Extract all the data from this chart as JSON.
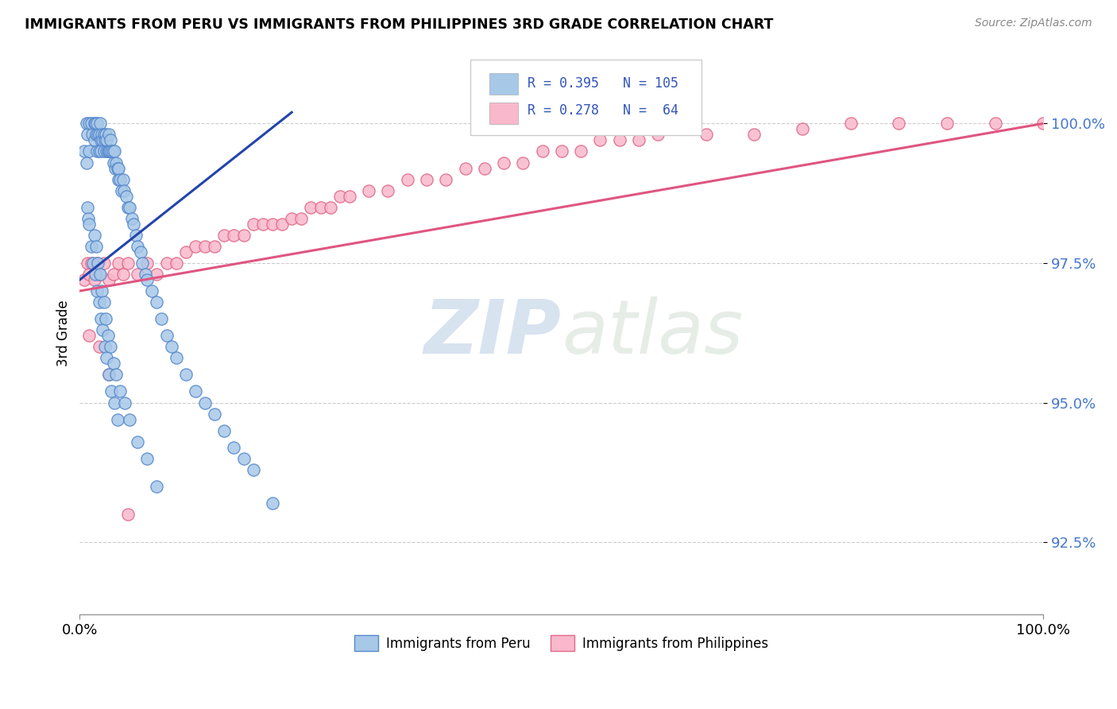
{
  "title": "IMMIGRANTS FROM PERU VS IMMIGRANTS FROM PHILIPPINES 3RD GRADE CORRELATION CHART",
  "source": "Source: ZipAtlas.com",
  "ylabel": "3rd Grade",
  "xlim": [
    0.0,
    1.0
  ],
  "ylim": [
    91.2,
    101.3
  ],
  "y_ticks": [
    92.5,
    95.0,
    97.5,
    100.0
  ],
  "y_tick_labels": [
    "92.5%",
    "95.0%",
    "97.5%",
    "100.0%"
  ],
  "x_ticks": [
    0.0,
    1.0
  ],
  "x_tick_labels": [
    "0.0%",
    "100.0%"
  ],
  "color_peru": "#a8c8e8",
  "color_philippines": "#f9b8cc",
  "color_edge_peru": "#5588cc",
  "color_edge_philippines": "#e06888",
  "color_line_peru": "#2244aa",
  "color_line_philippines": "#e05580",
  "watermark_zip": "ZIP",
  "watermark_atlas": "atlas",
  "background_color": "#ffffff",
  "peru_scatter_x": [
    0.005,
    0.007,
    0.008,
    0.01,
    0.01,
    0.012,
    0.013,
    0.015,
    0.015,
    0.016,
    0.017,
    0.018,
    0.018,
    0.019,
    0.02,
    0.02,
    0.021,
    0.022,
    0.022,
    0.023,
    0.024,
    0.025,
    0.025,
    0.026,
    0.027,
    0.028,
    0.028,
    0.029,
    0.03,
    0.03,
    0.031,
    0.032,
    0.033,
    0.034,
    0.035,
    0.036,
    0.037,
    0.038,
    0.039,
    0.04,
    0.04,
    0.042,
    0.043,
    0.045,
    0.046,
    0.048,
    0.05,
    0.052,
    0.054,
    0.056,
    0.058,
    0.06,
    0.063,
    0.065,
    0.068,
    0.07,
    0.075,
    0.08,
    0.085,
    0.09,
    0.095,
    0.1,
    0.11,
    0.12,
    0.13,
    0.14,
    0.15,
    0.16,
    0.17,
    0.18,
    0.008,
    0.009,
    0.01,
    0.012,
    0.014,
    0.016,
    0.018,
    0.02,
    0.022,
    0.024,
    0.026,
    0.028,
    0.03,
    0.033,
    0.036,
    0.039,
    0.015,
    0.017,
    0.019,
    0.021,
    0.023,
    0.025,
    0.027,
    0.029,
    0.032,
    0.035,
    0.038,
    0.042,
    0.047,
    0.052,
    0.06,
    0.07,
    0.08,
    0.007,
    0.2
  ],
  "peru_scatter_y": [
    99.5,
    100.0,
    99.8,
    100.0,
    99.5,
    100.0,
    99.8,
    100.0,
    99.7,
    100.0,
    99.8,
    100.0,
    99.5,
    99.8,
    99.8,
    99.5,
    100.0,
    99.7,
    99.5,
    99.8,
    99.7,
    99.8,
    99.5,
    99.7,
    99.8,
    99.5,
    99.7,
    99.5,
    99.8,
    99.5,
    99.5,
    99.7,
    99.5,
    99.5,
    99.3,
    99.5,
    99.2,
    99.3,
    99.2,
    99.0,
    99.2,
    99.0,
    98.8,
    99.0,
    98.8,
    98.7,
    98.5,
    98.5,
    98.3,
    98.2,
    98.0,
    97.8,
    97.7,
    97.5,
    97.3,
    97.2,
    97.0,
    96.8,
    96.5,
    96.2,
    96.0,
    95.8,
    95.5,
    95.2,
    95.0,
    94.8,
    94.5,
    94.2,
    94.0,
    93.8,
    98.5,
    98.3,
    98.2,
    97.8,
    97.5,
    97.3,
    97.0,
    96.8,
    96.5,
    96.3,
    96.0,
    95.8,
    95.5,
    95.2,
    95.0,
    94.7,
    98.0,
    97.8,
    97.5,
    97.3,
    97.0,
    96.8,
    96.5,
    96.2,
    96.0,
    95.7,
    95.5,
    95.2,
    95.0,
    94.7,
    94.3,
    94.0,
    93.5,
    99.3,
    93.2
  ],
  "phil_scatter_x": [
    0.005,
    0.008,
    0.01,
    0.012,
    0.015,
    0.018,
    0.02,
    0.025,
    0.03,
    0.035,
    0.04,
    0.045,
    0.05,
    0.06,
    0.07,
    0.08,
    0.09,
    0.1,
    0.11,
    0.12,
    0.13,
    0.14,
    0.15,
    0.16,
    0.17,
    0.18,
    0.19,
    0.2,
    0.21,
    0.22,
    0.23,
    0.24,
    0.25,
    0.26,
    0.27,
    0.28,
    0.3,
    0.32,
    0.34,
    0.36,
    0.38,
    0.4,
    0.42,
    0.44,
    0.46,
    0.48,
    0.5,
    0.52,
    0.54,
    0.56,
    0.58,
    0.6,
    0.65,
    0.7,
    0.75,
    0.8,
    0.85,
    0.9,
    0.95,
    1.0,
    0.01,
    0.02,
    0.03,
    0.05
  ],
  "phil_scatter_y": [
    97.2,
    97.5,
    97.3,
    97.5,
    97.2,
    97.5,
    97.3,
    97.5,
    97.2,
    97.3,
    97.5,
    97.3,
    97.5,
    97.3,
    97.5,
    97.3,
    97.5,
    97.5,
    97.7,
    97.8,
    97.8,
    97.8,
    98.0,
    98.0,
    98.0,
    98.2,
    98.2,
    98.2,
    98.2,
    98.3,
    98.3,
    98.5,
    98.5,
    98.5,
    98.7,
    98.7,
    98.8,
    98.8,
    99.0,
    99.0,
    99.0,
    99.2,
    99.2,
    99.3,
    99.3,
    99.5,
    99.5,
    99.5,
    99.7,
    99.7,
    99.7,
    99.8,
    99.8,
    99.8,
    99.9,
    100.0,
    100.0,
    100.0,
    100.0,
    100.0,
    96.2,
    96.0,
    95.5,
    93.0
  ],
  "peru_trend_x": [
    0.0,
    0.22
  ],
  "peru_trend_y": [
    97.2,
    100.2
  ],
  "phil_trend_x": [
    0.0,
    1.0
  ],
  "phil_trend_y": [
    97.0,
    100.0
  ]
}
